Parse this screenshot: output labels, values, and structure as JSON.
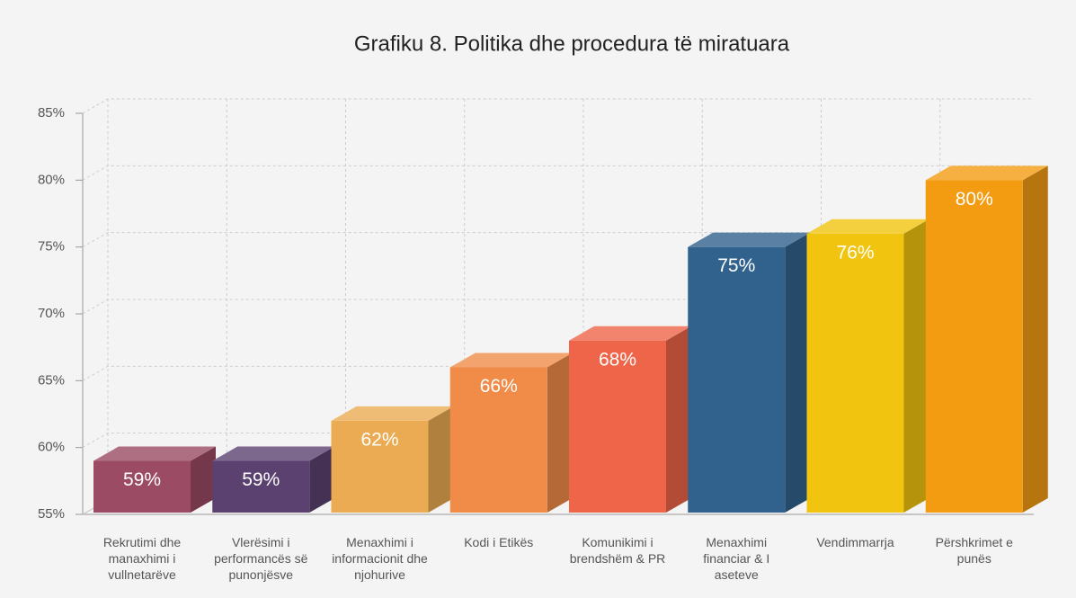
{
  "chart_data": {
    "type": "bar3d",
    "title": "Grafiku 8. Politika dhe procedura të miratuara",
    "categories": [
      "Rekrutimi dhe manaxhimi i vullnetarëve",
      "Vlerësimi i performancës së punonjësve",
      "Menaxhimi i informacionit dhe njohurive",
      "Kodi i Etikës",
      "Komunikimi i brendshëm & PR",
      "Menaxhimi financiar & I aseteve",
      "Vendimmarrja",
      "Përshkrimet e punës"
    ],
    "values": [
      59,
      59,
      62,
      66,
      68,
      75,
      76,
      80
    ],
    "value_labels": [
      "59%",
      "59%",
      "62%",
      "66%",
      "68%",
      "75%",
      "76%",
      "80%"
    ],
    "colors": [
      "#9b4b63",
      "#5b4170",
      "#ebab52",
      "#f08c48",
      "#ef6549",
      "#31628d",
      "#f1c40f",
      "#f39c12"
    ],
    "ylim": [
      55,
      85
    ],
    "yticks": [
      {
        "value": 55,
        "label": "55%"
      },
      {
        "value": 60,
        "label": "60%"
      },
      {
        "value": 65,
        "label": "65%"
      },
      {
        "value": 70,
        "label": "70%"
      },
      {
        "value": 75,
        "label": "75%"
      },
      {
        "value": 80,
        "label": "80%"
      },
      {
        "value": 85,
        "label": "85%"
      }
    ],
    "grid": true
  }
}
